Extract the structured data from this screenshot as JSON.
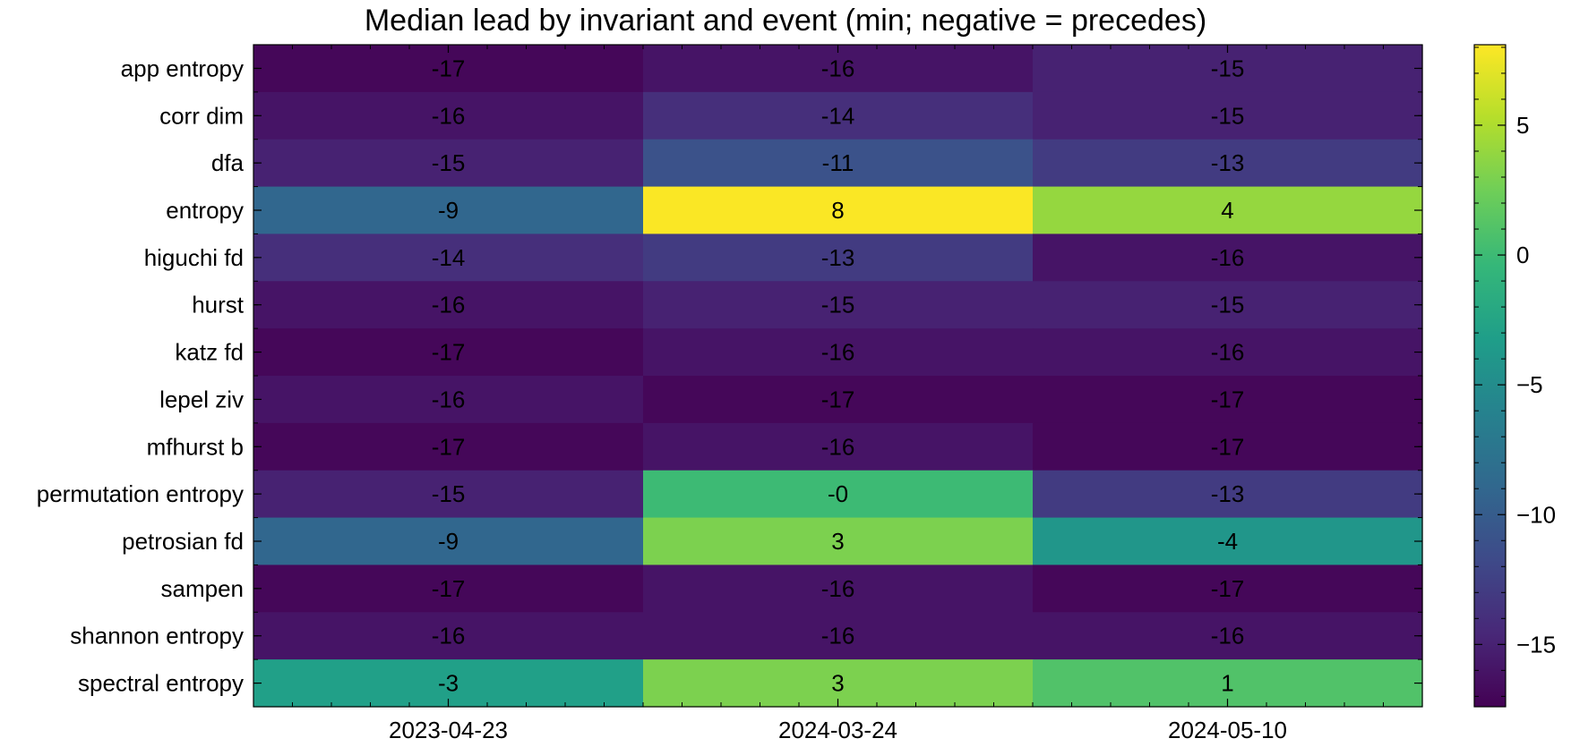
{
  "chart_data": {
    "type": "heatmap",
    "title": "Median lead by invariant and event (min; negative = precedes)",
    "xlabel": "",
    "ylabel": "",
    "x_categories": [
      "2023-04-23",
      "2024-03-24",
      "2024-05-10"
    ],
    "y_categories": [
      "app entropy",
      "corr dim",
      "dfa",
      "entropy",
      "higuchi fd",
      "hurst",
      "katz fd",
      "lepel ziv",
      "mfhurst b",
      "permutation entropy",
      "petrosian fd",
      "sampen",
      "shannon entropy",
      "spectral entropy"
    ],
    "values": [
      [
        -17,
        -16,
        -15
      ],
      [
        -16,
        -14,
        -15
      ],
      [
        -15,
        -11,
        -13
      ],
      [
        -9,
        8,
        4
      ],
      [
        -14,
        -13,
        -16
      ],
      [
        -16,
        -15,
        -15
      ],
      [
        -17,
        -16,
        -16
      ],
      [
        -16,
        -17,
        -17
      ],
      [
        -17,
        -16,
        -17
      ],
      [
        -15,
        0,
        -13
      ],
      [
        -9,
        3,
        -4
      ],
      [
        -17,
        -16,
        -17
      ],
      [
        -16,
        -16,
        -16
      ],
      [
        -3,
        3,
        1
      ]
    ],
    "value_labels": [
      [
        "-17",
        "-16",
        "-15"
      ],
      [
        "-16",
        "-14",
        "-15"
      ],
      [
        "-15",
        "-11",
        "-13"
      ],
      [
        "-9",
        "8",
        "4"
      ],
      [
        "-14",
        "-13",
        "-16"
      ],
      [
        "-16",
        "-15",
        "-15"
      ],
      [
        "-17",
        "-16",
        "-16"
      ],
      [
        "-16",
        "-17",
        "-17"
      ],
      [
        "-17",
        "-16",
        "-17"
      ],
      [
        "-15",
        "-0",
        "-13"
      ],
      [
        "-9",
        "3",
        "-4"
      ],
      [
        "-17",
        "-16",
        "-17"
      ],
      [
        "-16",
        "-16",
        "-16"
      ],
      [
        "-3",
        "3",
        "1"
      ]
    ],
    "colormap": "viridis",
    "color_range": [
      -17.4,
      8.1
    ],
    "colorbar_ticks": [
      5,
      0,
      -5,
      -10,
      -15
    ],
    "colorbar_tick_labels": [
      "5",
      "0",
      "−5",
      "−10",
      "−15"
    ]
  }
}
